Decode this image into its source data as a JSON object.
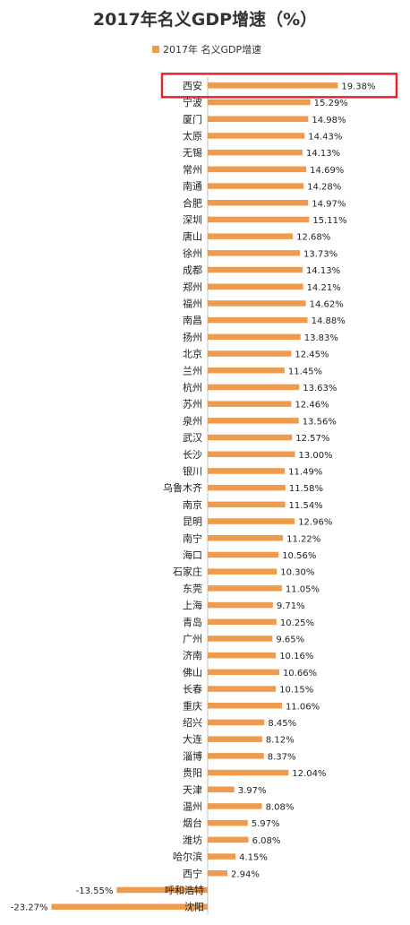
{
  "chart_data": {
    "type": "bar",
    "orientation": "horizontal",
    "title": "2017年名义GDP增速（%）",
    "legend": "2017年 名义GDP增速",
    "color": "#EE9B4D",
    "highlight_color": "#E0262E",
    "highlight_category": "西安",
    "categories": [
      "西安",
      "宁波",
      "厦门",
      "太原",
      "无锡",
      "常州",
      "南通",
      "合肥",
      "深圳",
      "唐山",
      "徐州",
      "成都",
      "郑州",
      "福州",
      "南昌",
      "扬州",
      "北京",
      "兰州",
      "杭州",
      "苏州",
      "泉州",
      "武汉",
      "长沙",
      "银川",
      "乌鲁木齐",
      "南京",
      "昆明",
      "南宁",
      "海口",
      "石家庄",
      "东莞",
      "上海",
      "青岛",
      "广州",
      "济南",
      "佛山",
      "长春",
      "重庆",
      "绍兴",
      "大连",
      "淄博",
      "贵阳",
      "天津",
      "温州",
      "烟台",
      "潍坊",
      "哈尔滨",
      "西宁",
      "呼和浩特",
      "沈阳"
    ],
    "values": [
      19.38,
      15.29,
      14.98,
      14.43,
      14.13,
      14.69,
      14.28,
      14.97,
      15.11,
      12.68,
      13.73,
      14.13,
      14.21,
      14.62,
      14.88,
      13.83,
      12.45,
      11.45,
      13.63,
      12.46,
      13.56,
      12.57,
      13.0,
      11.49,
      11.58,
      11.54,
      12.96,
      11.22,
      10.56,
      10.3,
      11.05,
      9.71,
      10.25,
      9.65,
      10.16,
      10.66,
      10.15,
      11.06,
      8.45,
      8.12,
      8.37,
      12.04,
      3.97,
      8.08,
      5.97,
      6.08,
      4.15,
      2.94,
      -13.55,
      -23.27
    ],
    "labels": [
      "19.38%",
      "15.29%",
      "14.98%",
      "14.43%",
      "14.13%",
      "14.69%",
      "14.28%",
      "14.97%",
      "15.11%",
      "12.68%",
      "13.73%",
      "14.13%",
      "14.21%",
      "14.62%",
      "14.88%",
      "13.83%",
      "12.45%",
      "11.45%",
      "13.63%",
      "12.46%",
      "13.56%",
      "12.57%",
      "13.00%",
      "11.49%",
      "11.58%",
      "11.54%",
      "12.96%",
      "11.22%",
      "10.56%",
      "10.30%",
      "11.05%",
      "9.71%",
      "10.25%",
      "9.65%",
      "10.16%",
      "10.66%",
      "10.15%",
      "11.06%",
      "8.45%",
      "8.12%",
      "8.37%",
      "12.04%",
      "3.97%",
      "8.08%",
      "5.97%",
      "6.08%",
      "4.15%",
      "2.94%",
      "-13.55%",
      "-23.27%"
    ]
  }
}
